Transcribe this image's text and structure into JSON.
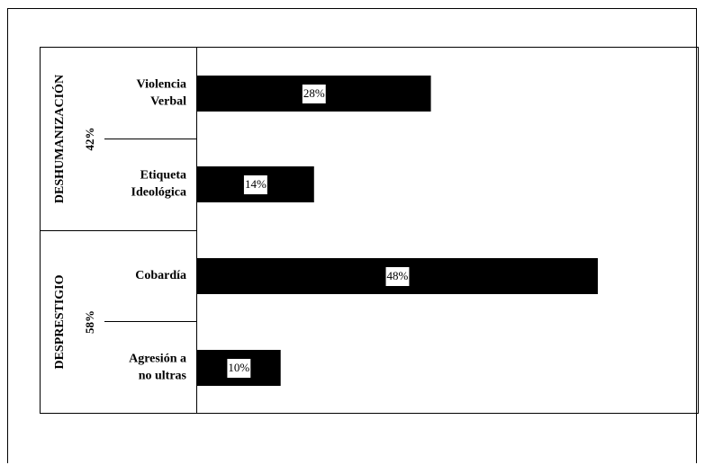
{
  "chart_data": {
    "type": "bar",
    "orientation": "horizontal",
    "groups": [
      {
        "name": "DESHUMANIZACIÓN",
        "percent": "42%",
        "categories": [
          0,
          1
        ]
      },
      {
        "name": "DESPRESTIGIO",
        "percent": "58%",
        "categories": [
          2,
          3
        ]
      }
    ],
    "categories": [
      {
        "lines": [
          "Violencia",
          "Verbal"
        ]
      },
      {
        "lines": [
          "Etiqueta",
          "Ideológica"
        ]
      },
      {
        "lines": [
          "Cobardía"
        ]
      },
      {
        "lines": [
          "Agresión a",
          "no ultras"
        ]
      }
    ],
    "values": [
      28,
      14,
      48,
      10
    ],
    "value_labels": [
      "28%",
      "14%",
      "48%",
      "10%"
    ],
    "xlim": [
      0,
      60
    ],
    "bar_color": "#000000",
    "grid": false
  }
}
